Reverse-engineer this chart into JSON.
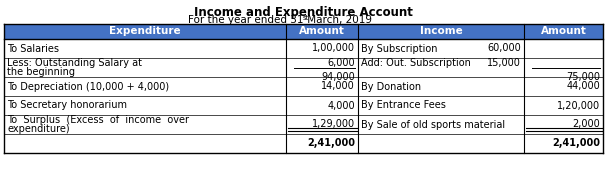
{
  "title": "Income and Expenditure Account",
  "subtitle_pre": "For the year ended 31",
  "subtitle_sup": "st",
  "subtitle_post": " March, 2019",
  "header_bg": "#4472C4",
  "header_text_color": "#FFFFFF",
  "border_color": "#000000",
  "bg_color": "#FFFFFF",
  "headers": [
    "Expenditure",
    "Amount",
    "Income",
    "Amount"
  ],
  "fs": 7.0,
  "fs_header": 7.5,
  "fs_title": 8.5,
  "fs_sub": 7.5
}
